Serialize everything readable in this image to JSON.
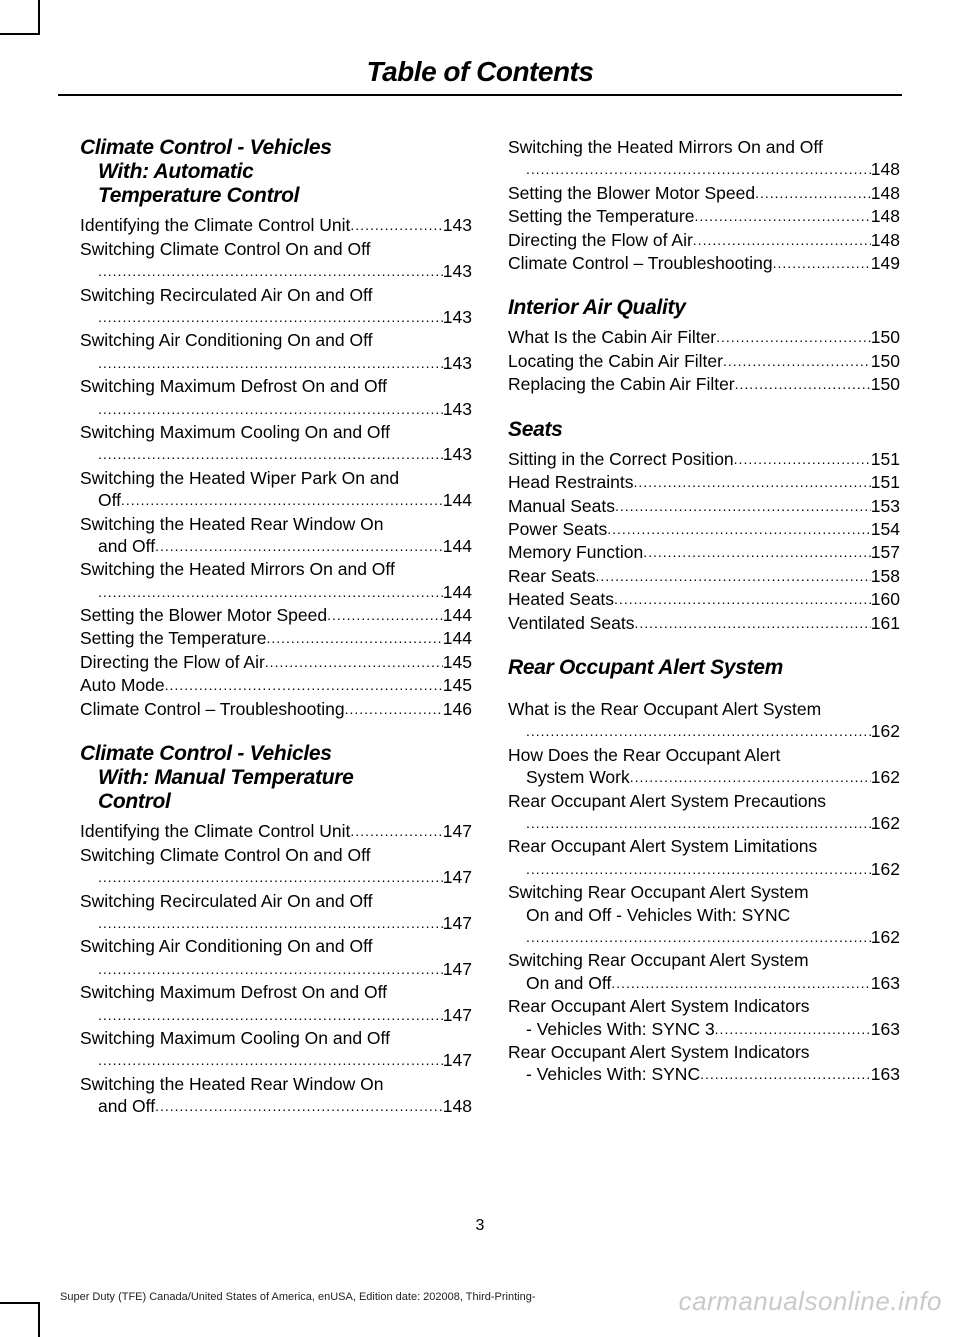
{
  "header": {
    "title": "Table of Contents"
  },
  "page_number": "3",
  "footer": "Super Duty (TFE) Canada/United States of America, enUSA, Edition date: 202008, Third-Printing-",
  "watermark": "carmanualsonline.info",
  "left": {
    "sec1": {
      "title_l1": "Climate Control - Vehicles",
      "title_l2": "With: Automatic",
      "title_l3": "Temperature Control",
      "items": [
        {
          "label": "Identifying the Climate Control Unit",
          "page": "143",
          "wrap": false
        },
        {
          "label": "Switching Climate Control On and Off",
          "page": "143",
          "wrap": true,
          "cont": ""
        },
        {
          "label": "Switching Recirculated Air On and Off",
          "page": "143",
          "wrap": true,
          "cont": ""
        },
        {
          "label": "Switching Air Conditioning On and Off",
          "page": "143",
          "wrap": true,
          "cont": ""
        },
        {
          "label": "Switching Maximum Defrost On and Off",
          "page": "143",
          "wrap": true,
          "cont": ""
        },
        {
          "label": "Switching Maximum Cooling On and Off",
          "page": "143",
          "wrap": true,
          "cont": ""
        },
        {
          "label": "Switching the Heated Wiper Park On and",
          "page": "144",
          "wrap": true,
          "cont": "Off"
        },
        {
          "label": "Switching the Heated Rear Window On",
          "page": "144",
          "wrap": true,
          "cont": "and Off"
        },
        {
          "label": "Switching the Heated Mirrors On and Off",
          "page": "144",
          "wrap": true,
          "cont": ""
        },
        {
          "label": "Setting the Blower Motor Speed",
          "page": "144",
          "wrap": false
        },
        {
          "label": "Setting the Temperature",
          "page": "144",
          "wrap": false
        },
        {
          "label": "Directing the Flow of Air",
          "page": "145",
          "wrap": false
        },
        {
          "label": "Auto Mode",
          "page": "145",
          "wrap": false
        },
        {
          "label": "Climate Control – Troubleshooting",
          "page": "146",
          "wrap": false
        }
      ]
    },
    "sec2": {
      "title_l1": "Climate Control - Vehicles",
      "title_l2": "With: Manual Temperature",
      "title_l3": "Control",
      "items": [
        {
          "label": "Identifying the Climate Control Unit",
          "page": "147",
          "wrap": false
        },
        {
          "label": "Switching Climate Control On and Off",
          "page": "147",
          "wrap": true,
          "cont": ""
        },
        {
          "label": "Switching Recirculated Air On and Off",
          "page": "147",
          "wrap": true,
          "cont": ""
        },
        {
          "label": "Switching Air Conditioning On and Off",
          "page": "147",
          "wrap": true,
          "cont": ""
        },
        {
          "label": "Switching Maximum Defrost On and Off",
          "page": "147",
          "wrap": true,
          "cont": ""
        },
        {
          "label": "Switching Maximum Cooling On and Off",
          "page": "147",
          "wrap": true,
          "cont": ""
        },
        {
          "label": "Switching the Heated Rear Window On",
          "page": "148",
          "wrap": true,
          "cont": "and Off"
        }
      ]
    }
  },
  "right": {
    "sec0": {
      "items": [
        {
          "label": "Switching the Heated Mirrors On and Off",
          "page": "148",
          "wrap": true,
          "cont": ""
        },
        {
          "label": "Setting the Blower Motor Speed",
          "page": "148",
          "wrap": false
        },
        {
          "label": "Setting the Temperature",
          "page": "148",
          "wrap": false
        },
        {
          "label": "Directing the Flow of Air",
          "page": "148",
          "wrap": false
        },
        {
          "label": "Climate Control – Troubleshooting",
          "page": "149",
          "wrap": false
        }
      ]
    },
    "sec1": {
      "title": "Interior Air Quality",
      "items": [
        {
          "label": "What Is the Cabin Air Filter",
          "page": "150",
          "wrap": false
        },
        {
          "label": "Locating the Cabin Air Filter",
          "page": "150",
          "wrap": false
        },
        {
          "label": "Replacing the Cabin Air Filter",
          "page": "150",
          "wrap": false
        }
      ]
    },
    "sec2": {
      "title": "Seats",
      "items": [
        {
          "label": "Sitting in the Correct Position",
          "page": "151",
          "wrap": false
        },
        {
          "label": "Head Restraints",
          "page": "151",
          "wrap": false
        },
        {
          "label": "Manual Seats",
          "page": "153",
          "wrap": false
        },
        {
          "label": "Power Seats",
          "page": "154",
          "wrap": false
        },
        {
          "label": "Memory Function",
          "page": "157",
          "wrap": false
        },
        {
          "label": "Rear Seats",
          "page": "158",
          "wrap": false
        },
        {
          "label": "Heated Seats",
          "page": "160",
          "wrap": false
        },
        {
          "label": "Ventilated Seats",
          "page": "161",
          "wrap": false
        }
      ]
    },
    "sec3": {
      "title": "Rear Occupant Alert System",
      "items": [
        {
          "label": "What is the Rear Occupant Alert System",
          "page": "162",
          "wrap": true,
          "cont": ""
        },
        {
          "label": "How Does the Rear Occupant Alert",
          "page": "162",
          "wrap": true,
          "cont": "System Work"
        },
        {
          "label": "Rear Occupant Alert System Precautions",
          "page": "162",
          "wrap": true,
          "cont": ""
        },
        {
          "label": "Rear Occupant Alert System Limitations",
          "page": "162",
          "wrap": true,
          "cont": ""
        },
        {
          "label": "Switching Rear Occupant Alert System",
          "page": "162",
          "wrap": true,
          "cont": "On and Off - Vehicles With: SYNC",
          "cont2": ""
        },
        {
          "label": "Switching Rear Occupant Alert System",
          "page": "163",
          "wrap": true,
          "cont": "On and Off"
        },
        {
          "label": "Rear Occupant Alert System Indicators",
          "page": "163",
          "wrap": true,
          "cont": "- Vehicles With: SYNC 3"
        },
        {
          "label": "Rear Occupant Alert System Indicators",
          "page": "163",
          "wrap": true,
          "cont": "- Vehicles With: SYNC"
        }
      ]
    }
  }
}
